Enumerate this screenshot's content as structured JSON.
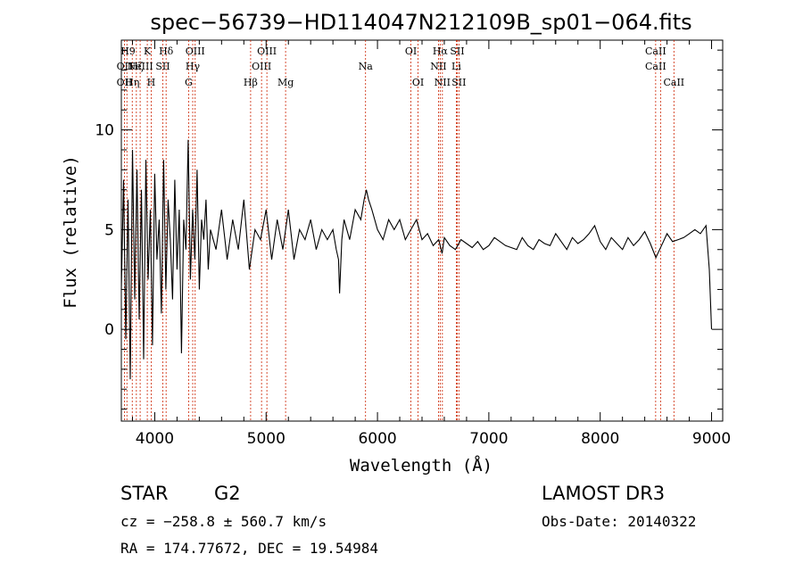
{
  "chart_data": {
    "type": "line",
    "title": "spec−56739−HD114047N212109B_sp01−064.fits",
    "xlabel": "Wavelength (Å)",
    "ylabel": "Flux (relative)",
    "xlim": [
      3700,
      9100
    ],
    "ylim": [
      -4.6,
      14.5
    ],
    "x_ticks": [
      4000,
      5000,
      6000,
      7000,
      8000,
      9000
    ],
    "y_ticks": [
      0,
      5,
      10
    ],
    "series": [
      {
        "name": "spectrum",
        "x": [
          3700,
          3720,
          3740,
          3760,
          3780,
          3800,
          3820,
          3840,
          3860,
          3880,
          3900,
          3920,
          3940,
          3960,
          3980,
          4000,
          4020,
          4040,
          4060,
          4080,
          4100,
          4120,
          4140,
          4160,
          4180,
          4200,
          4220,
          4240,
          4260,
          4280,
          4300,
          4320,
          4340,
          4360,
          4380,
          4400,
          4420,
          4440,
          4460,
          4480,
          4500,
          4550,
          4600,
          4650,
          4700,
          4750,
          4800,
          4850,
          4900,
          4950,
          5000,
          5050,
          5100,
          5150,
          5200,
          5250,
          5300,
          5350,
          5400,
          5450,
          5500,
          5550,
          5600,
          5630,
          5650,
          5660,
          5680,
          5700,
          5750,
          5800,
          5850,
          5880,
          5900,
          5920,
          5950,
          6000,
          6050,
          6100,
          6150,
          6200,
          6250,
          6300,
          6350,
          6400,
          6450,
          6500,
          6550,
          6580,
          6600,
          6650,
          6700,
          6750,
          6800,
          6850,
          6900,
          6950,
          7000,
          7050,
          7100,
          7150,
          7200,
          7250,
          7300,
          7350,
          7400,
          7450,
          7500,
          7550,
          7600,
          7650,
          7700,
          7750,
          7800,
          7850,
          7900,
          7950,
          8000,
          8050,
          8100,
          8150,
          8200,
          8250,
          8300,
          8350,
          8400,
          8450,
          8500,
          8550,
          8600,
          8650,
          8700,
          8750,
          8800,
          8850,
          8900,
          8950,
          8980,
          9000
        ],
        "y": [
          2.0,
          7.5,
          -0.5,
          6.5,
          -2.5,
          9.0,
          1.5,
          8.0,
          0.5,
          7.0,
          -1.5,
          8.5,
          2.5,
          6.0,
          -0.8,
          7.8,
          3.5,
          5.5,
          0.8,
          8.5,
          2.0,
          6.5,
          4.5,
          1.5,
          7.5,
          3.0,
          6.0,
          -1.2,
          5.5,
          4.0,
          9.5,
          2.5,
          6.0,
          3.5,
          8.0,
          2.0,
          5.5,
          4.5,
          6.5,
          3.0,
          5.0,
          4.0,
          6.0,
          3.5,
          5.5,
          4.0,
          6.5,
          3.0,
          5.0,
          4.5,
          6.0,
          3.5,
          5.5,
          4.0,
          6.0,
          3.5,
          5.0,
          4.5,
          5.5,
          4.0,
          5.0,
          4.5,
          5.0,
          4.0,
          3.5,
          1.8,
          4.5,
          5.5,
          4.5,
          6.0,
          5.5,
          6.5,
          7.0,
          6.5,
          6.0,
          5.0,
          4.5,
          5.5,
          5.0,
          5.5,
          4.5,
          5.0,
          5.5,
          4.5,
          4.8,
          4.2,
          4.5,
          3.8,
          4.6,
          4.2,
          4.0,
          4.5,
          4.3,
          4.1,
          4.4,
          4.0,
          4.2,
          4.6,
          4.4,
          4.2,
          4.1,
          4.0,
          4.6,
          4.2,
          4.0,
          4.5,
          4.3,
          4.2,
          4.8,
          4.4,
          4.0,
          4.6,
          4.3,
          4.5,
          4.8,
          5.2,
          4.4,
          4.0,
          4.6,
          4.3,
          4.0,
          4.6,
          4.2,
          4.5,
          4.9,
          4.3,
          3.6,
          4.2,
          4.8,
          4.4,
          4.5,
          4.6,
          4.8,
          5.0,
          4.8,
          5.2,
          3.0,
          0.0
        ]
      }
    ],
    "spectral_lines": [
      {
        "wavelength": 3728,
        "labels": [
          "OII"
        ]
      },
      {
        "wavelength": 3750,
        "labels": [
          "H9"
        ]
      },
      {
        "wavelength": 3798,
        "labels": [
          "Hη"
        ]
      },
      {
        "wavelength": 3835,
        "labels": [
          "H9",
          "Hζ"
        ]
      },
      {
        "wavelength": 3869,
        "labels": [
          "NeIII"
        ]
      },
      {
        "wavelength": 3933,
        "labels": [
          "K"
        ]
      },
      {
        "wavelength": 3968,
        "labels": [
          "H"
        ]
      },
      {
        "wavelength": 4072,
        "labels": [
          "SII"
        ]
      },
      {
        "wavelength": 4102,
        "labels": [
          "Hδ"
        ]
      },
      {
        "wavelength": 4304,
        "labels": [
          "G"
        ]
      },
      {
        "wavelength": 4341,
        "labels": [
          "Hγ"
        ]
      },
      {
        "wavelength": 4363,
        "labels": [
          "OIII"
        ]
      },
      {
        "wavelength": 4861,
        "labels": [
          "Hβ"
        ]
      },
      {
        "wavelength": 4959,
        "labels": [
          "OIII"
        ]
      },
      {
        "wavelength": 5007,
        "labels": [
          "OIII"
        ]
      },
      {
        "wavelength": 5175,
        "labels": [
          "Mg"
        ]
      },
      {
        "wavelength": 5893,
        "labels": [
          "Na"
        ]
      },
      {
        "wavelength": 6300,
        "labels": [
          "OI"
        ]
      },
      {
        "wavelength": 6364,
        "labels": [
          "OI"
        ]
      },
      {
        "wavelength": 6548,
        "labels": [
          "NII"
        ]
      },
      {
        "wavelength": 6563,
        "labels": [
          "Hα"
        ]
      },
      {
        "wavelength": 6583,
        "labels": [
          "NII"
        ]
      },
      {
        "wavelength": 6708,
        "labels": [
          "Li"
        ]
      },
      {
        "wavelength": 6716,
        "labels": [
          "SII"
        ]
      },
      {
        "wavelength": 6731,
        "labels": [
          "SII"
        ]
      },
      {
        "wavelength": 8498,
        "labels": [
          "CaII"
        ]
      },
      {
        "wavelength": 8542,
        "labels": [
          "CaII"
        ]
      },
      {
        "wavelength": 8662,
        "labels": [
          "CaII"
        ]
      }
    ],
    "line_color": "#000000",
    "marker_color": "#cc2200"
  },
  "info": {
    "class_label": "STAR",
    "subclass": "G2",
    "survey": "LAMOST DR3",
    "cz": "cz = −258.8 ± 560.7 km/s",
    "obs_date": "Obs-Date: 20140322",
    "coords": "RA = 174.77672, DEC =  19.54984"
  },
  "label_rows": {
    "row1": [
      "H9",
      "K",
      "Hδ",
      "OIII",
      "OIII",
      "OI",
      "Hα",
      "SII",
      "CaII"
    ],
    "row2": [
      "OII",
      "Hζ",
      "NeIII",
      "SII",
      "Hγ",
      "OIII",
      "Na",
      "NII",
      "Li",
      "CaII"
    ],
    "row3": [
      "OII",
      "Hη",
      "H",
      "G",
      "Hβ",
      "Mg",
      "OI",
      "NII",
      "SII",
      "CaII"
    ]
  }
}
